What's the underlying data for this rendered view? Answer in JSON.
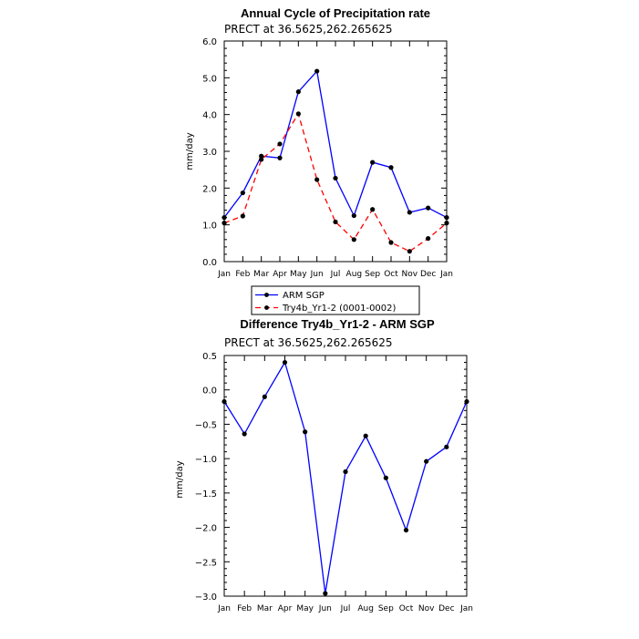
{
  "chart_data": [
    {
      "type": "line",
      "title": "Annual Cycle of Precipitation rate",
      "subtitle": "PRECT at 36.5625,262.265625",
      "ylabel": "mm/day",
      "xlabel": "",
      "ylim": [
        0,
        6
      ],
      "yticks": [
        "0.0",
        "1.0",
        "2.0",
        "3.0",
        "4.0",
        "5.0",
        "6.0"
      ],
      "categories": [
        "Jan",
        "Feb",
        "Mar",
        "Apr",
        "May",
        "Jun",
        "Jul",
        "Aug",
        "Sep",
        "Oct",
        "Nov",
        "Dec",
        "Jan"
      ],
      "grid": false,
      "series": [
        {
          "name": "ARM SGP",
          "color": "#0000ff",
          "dash": "solid",
          "values": [
            1.2,
            1.87,
            2.87,
            2.82,
            4.62,
            5.18,
            2.27,
            1.25,
            2.7,
            2.56,
            1.34,
            1.46,
            1.2
          ]
        },
        {
          "name": "Try4b_Yr1-2 (0001-0002)",
          "color": "#ff0000",
          "dash": "dashed",
          "values": [
            1.05,
            1.24,
            2.78,
            3.2,
            4.02,
            2.23,
            1.08,
            0.6,
            1.42,
            0.52,
            0.28,
            0.63,
            1.05
          ]
        }
      ],
      "legend": {
        "placement": "below",
        "entries": [
          "ARM SGP",
          "Try4b_Yr1-2 (0001-0002)"
        ]
      }
    },
    {
      "type": "line",
      "title": "Difference Try4b_Yr1-2 - ARM SGP",
      "subtitle": "PRECT at 36.5625,262.265625",
      "ylabel": "mm/day",
      "xlabel": "",
      "ylim": [
        -3,
        0.5
      ],
      "yticks": [
        "-3.0",
        "-2.5",
        "-2.0",
        "-1.5",
        "-1.0",
        "-0.5",
        "0.0",
        "0.5"
      ],
      "categories": [
        "Jan",
        "Feb",
        "Mar",
        "Apr",
        "May",
        "Jun",
        "Jul",
        "Aug",
        "Sep",
        "Oct",
        "Nov",
        "Dec",
        "Jan"
      ],
      "grid": false,
      "series": [
        {
          "color": "#0000ff",
          "dash": "solid",
          "values": [
            -0.17,
            -0.64,
            -0.1,
            0.4,
            -0.61,
            -2.96,
            -1.19,
            -0.67,
            -1.28,
            -2.04,
            -1.04,
            -0.83,
            -0.17
          ]
        }
      ]
    }
  ]
}
